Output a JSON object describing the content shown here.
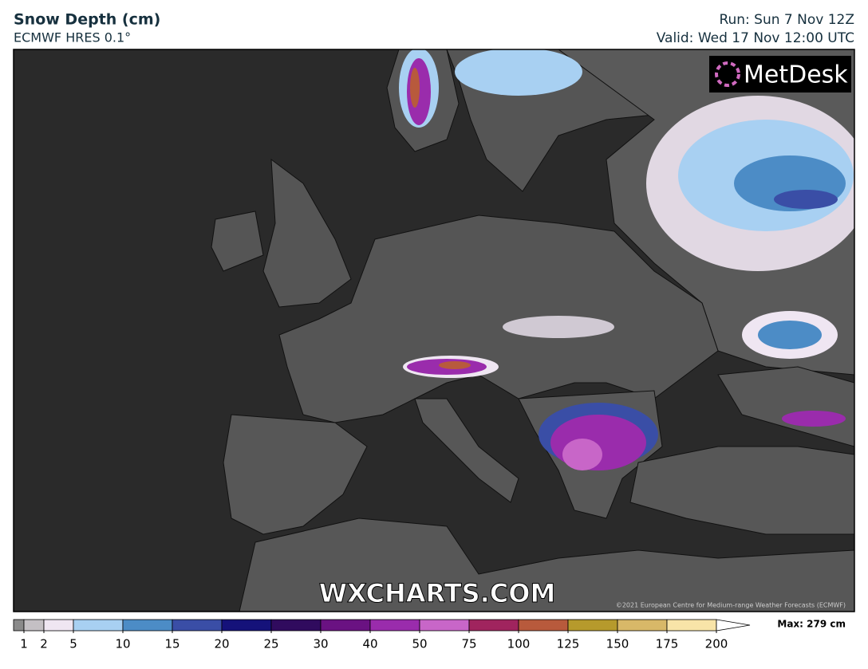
{
  "header": {
    "title": "Snow Depth (cm)",
    "subtitle": "ECMWF HRES 0.1°",
    "run": "Run: Sun 7 Nov 12Z",
    "valid": "Valid: Wed 17 Nov 12:00 UTC"
  },
  "map": {
    "logo": "MetDesk",
    "watermark": "WXCHARTS.COM",
    "copyright": "©2021 European Centre for Medium-range Weather Forecasts (ECMWF)"
  },
  "colorbar": {
    "ticks": [
      1,
      2,
      5,
      10,
      15,
      20,
      25,
      30,
      40,
      50,
      75,
      100,
      125,
      150,
      175,
      200
    ],
    "colors": [
      "#8a8a8a",
      "#c4c0c4",
      "#efe6f2",
      "#a8d0f2",
      "#4c8cc6",
      "#3a4ea6",
      "#15127a",
      "#300b5e",
      "#6a1282",
      "#9a2cac",
      "#c866c8",
      "#a0245e",
      "#b85a3c",
      "#b69a2c",
      "#d8b868",
      "#f8e4a8"
    ],
    "over_color": "#ffffff",
    "max_label": "Max: 279 cm"
  }
}
